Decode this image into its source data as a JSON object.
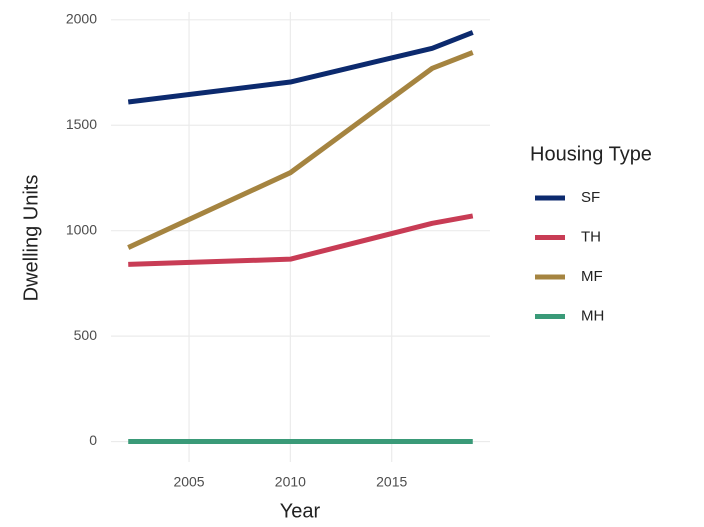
{
  "chart_data": {
    "type": "line",
    "x_label": "Year",
    "y_label": "Dwelling Units",
    "x": [
      2002,
      2010,
      2017,
      2019
    ],
    "series": [
      {
        "name": "SF",
        "color": "#0c2a6e",
        "values": [
          1610,
          1705,
          1865,
          1940
        ]
      },
      {
        "name": "TH",
        "color": "#c83c55",
        "values": [
          840,
          865,
          1035,
          1070
        ]
      },
      {
        "name": "MF",
        "color": "#a58440",
        "values": [
          920,
          1275,
          1770,
          1845
        ]
      },
      {
        "name": "MH",
        "color": "#3a9a78",
        "values": [
          0,
          0,
          0,
          0
        ]
      }
    ],
    "legend_title": "Housing Type",
    "xlim": [
      2001.15,
      2019.85
    ],
    "xticks": [
      2005,
      2010,
      2015
    ],
    "ylim": [
      -97,
      2037
    ],
    "yticks": [
      0,
      500,
      1000,
      1500,
      2000
    ],
    "grid": true
  }
}
